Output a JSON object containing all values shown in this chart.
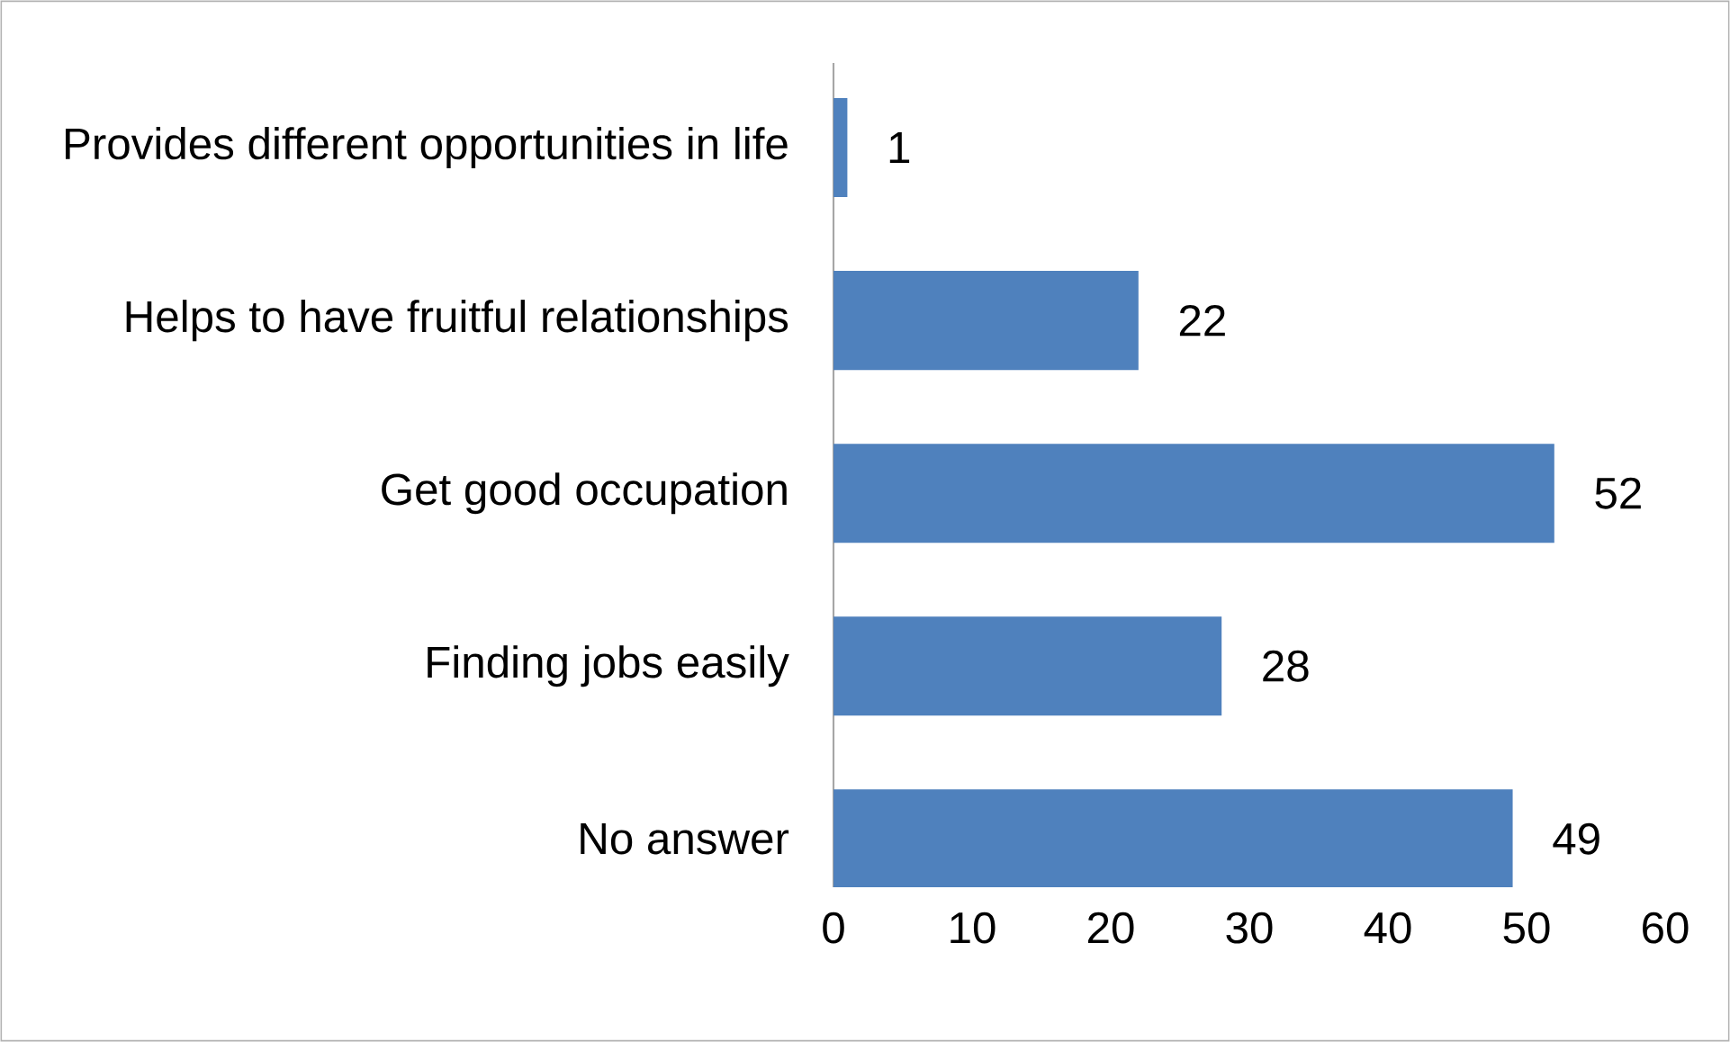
{
  "chart_data": {
    "type": "bar",
    "orientation": "horizontal",
    "categories": [
      "Provides different opportunities in life",
      "Helps to have  fruitful relationships",
      "Get good occupation",
      "Finding jobs easily",
      "No answer"
    ],
    "values": [
      1,
      22,
      52,
      28,
      49
    ],
    "color": "#4f81bd",
    "xlim": [
      0,
      60
    ],
    "xticks": [
      0,
      10,
      20,
      30,
      40,
      50,
      60
    ],
    "data_labels": true,
    "grid": false
  }
}
